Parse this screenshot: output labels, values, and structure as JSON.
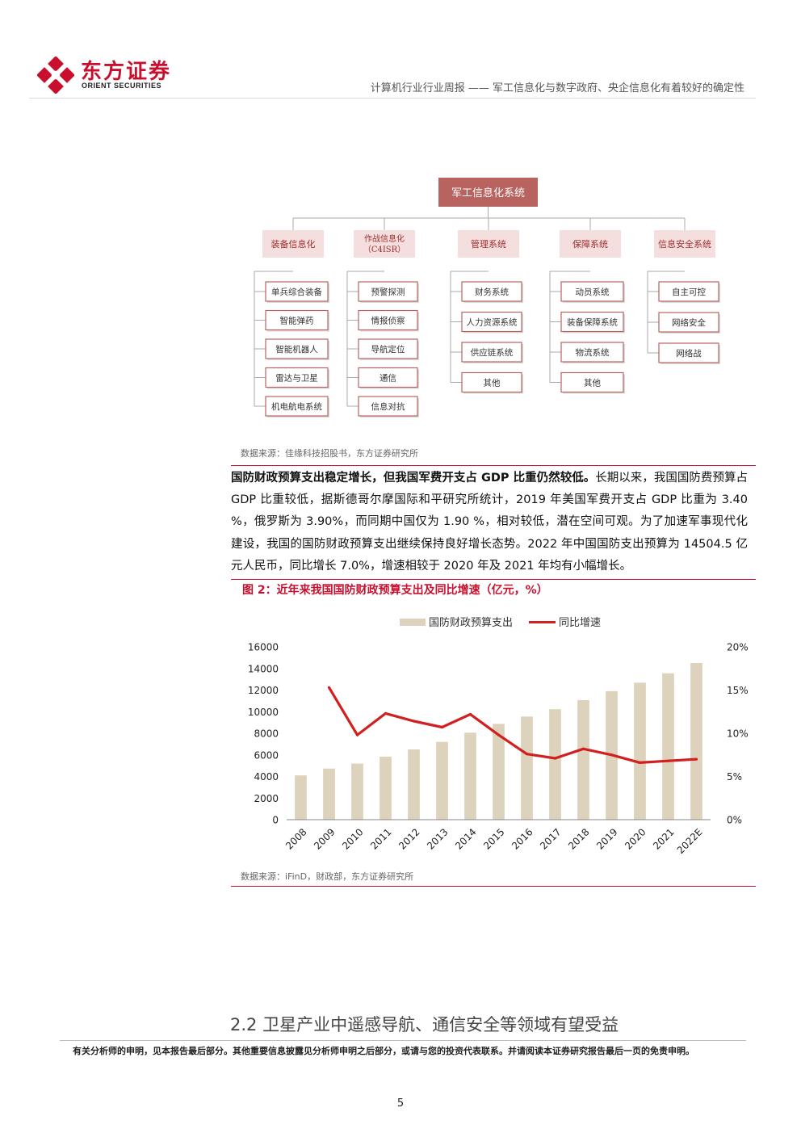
{
  "header": {
    "logo_cn": "东方证券",
    "logo_en": "ORIENT SECURITIES",
    "title": "计算机行业行业周报 —— 军工信息化与数字政府、央企信息化有着较好的确定性"
  },
  "org_chart": {
    "root": "军工信息化系统",
    "branches": [
      {
        "label": [
          "装备信息化"
        ],
        "items": [
          "单兵综合装备",
          "智能弹药",
          "智能机器人",
          "雷达与卫星",
          "机电航电系统"
        ]
      },
      {
        "label": [
          "作战信息化",
          "（C4ISR）"
        ],
        "items": [
          "预警探测",
          "情报侦察",
          "导航定位",
          "通信",
          "信息对抗"
        ]
      },
      {
        "label": [
          "管理系统"
        ],
        "items": [
          "财务系统",
          "人力资源系统",
          "供应链系统",
          "其他"
        ]
      },
      {
        "label": [
          "保障系统"
        ],
        "items": [
          "动员系统",
          "装备保障系统",
          "物流系统",
          "其他"
        ]
      },
      {
        "label": [
          "信息安全系统"
        ],
        "items": [
          "自主可控",
          "网络安全",
          "网络战"
        ]
      }
    ],
    "source": "数据来源：佳缘科技招股书，东方证券研究所"
  },
  "paragraph": {
    "lead": "国防财政预算支出稳定增长，但我国军费开支占 GDP 比重仍然较低。",
    "body": "长期以来，我国国防费预算占 GDP 比重较低，据斯德哥尔摩国际和平研究所统计，2019 年美国军费开支占 GDP 比重为 3.40 %，俄罗斯为 3.90%，而同期中国仅为 1.90 %，相对较低，潜在空间可观。为了加速军事现代化建设，我国的国防财政预算支出继续保持良好增长态势。2022 年中国国防支出预算为 14504.5 亿元人民币，同比增长 7.0%，增速相较于 2020 年及 2021 年均有小幅增长。"
  },
  "figure": {
    "title": "图 2：近年来我国国防财政预算支出及同比增速（亿元，%）",
    "source": "数据来源：iFinD，财政部，东方证券研究所"
  },
  "chart_data": {
    "type": "bar",
    "categories": [
      "2008",
      "2009",
      "2010",
      "2011",
      "2012",
      "2013",
      "2014",
      "2015",
      "2016",
      "2017",
      "2018",
      "2019",
      "2020",
      "2021",
      "2022E"
    ],
    "series": [
      {
        "name": "国防财政预算支出",
        "type": "bar",
        "axis": "left",
        "color": "#ddd2bb",
        "values": [
          4099,
          4729,
          5191,
          5829,
          6503,
          7202,
          8055,
          8868,
          9544,
          10226,
          11070,
          11899,
          12680,
          13553,
          14504.5
        ]
      },
      {
        "name": "同比增速",
        "type": "line",
        "axis": "right",
        "color": "#d21f1f",
        "values": [
          null,
          15.3,
          9.8,
          12.3,
          11.4,
          10.7,
          12.2,
          9.8,
          7.6,
          7.1,
          8.2,
          7.5,
          6.6,
          6.8,
          7.0
        ]
      }
    ],
    "y_left": {
      "min": 0,
      "max": 16000,
      "ticks": [
        0,
        2000,
        4000,
        6000,
        8000,
        10000,
        12000,
        14000,
        16000
      ]
    },
    "y_right": {
      "min": 0,
      "max": 20,
      "ticks": [
        "0%",
        "5%",
        "10%",
        "15%",
        "20%"
      ]
    },
    "legend": "top-center",
    "grid": false
  },
  "section": {
    "title": "2.2 卫星产业中遥感导航、通信安全等领域有望受益"
  },
  "footer": {
    "disclaimer": "有关分析师的申明，见本报告最后部分。其他重要信息披露见分析师申明之后部分，或请与您的投资代表联系。并请阅读本证券研究报告最后一页的免责申明。",
    "page": "5"
  },
  "colors": {
    "brand": "#c8102e",
    "bar": "#ddd2bb",
    "line": "#d21f1f",
    "org_box": "#b8635f",
    "org_line": "#aaa"
  }
}
